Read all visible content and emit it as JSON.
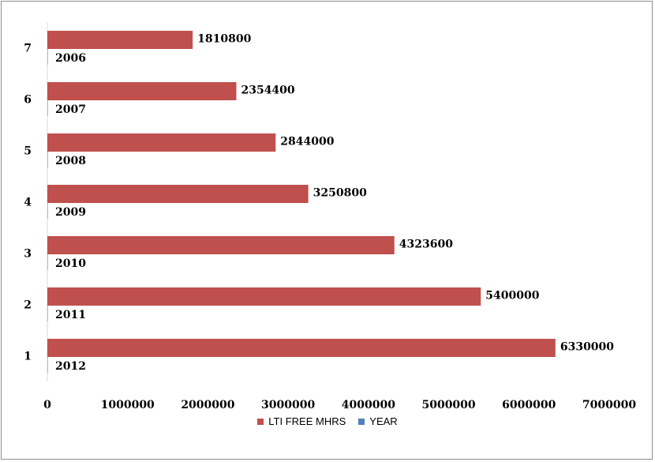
{
  "chart_data": {
    "type": "bar",
    "orientation": "horizontal",
    "categories": [
      "1",
      "2",
      "3",
      "4",
      "5",
      "6",
      "7"
    ],
    "series": [
      {
        "name": "LTI FREE MHRS",
        "color": "#c0504d",
        "values": [
          6330000,
          5400000,
          4323600,
          3250800,
          2844000,
          2354400,
          1810800
        ]
      },
      {
        "name": "YEAR",
        "color": "#4f81bd",
        "values": [
          2012,
          2011,
          2010,
          2009,
          2008,
          2007,
          2006
        ]
      }
    ],
    "xlim": [
      0,
      7000000
    ],
    "xticks": [
      "0",
      "1000000",
      "2000000",
      "3000000",
      "4000000",
      "5000000",
      "6000000",
      "7000000"
    ],
    "grid": false,
    "legend_position": "bottom",
    "title": "",
    "xlabel": "",
    "ylabel": ""
  }
}
